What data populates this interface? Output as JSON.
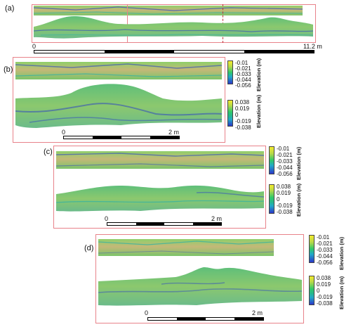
{
  "panels": {
    "a": {
      "label": "(a)",
      "scale_start": "0",
      "scale_end": "11.2 m"
    },
    "b": {
      "label": "(b)",
      "scale_start": "0",
      "scale_end": "2 m"
    },
    "c": {
      "label": "(c)",
      "scale_start": "0",
      "scale_end": "2 m"
    },
    "d": {
      "label": "(d)",
      "scale_start": "0",
      "scale_end": "2 m"
    }
  },
  "colorbar_elevation": {
    "title": "Elevation (m)",
    "ticks": [
      "-0.01",
      "-0.021",
      "-0.033",
      "-0.044",
      "-0.056"
    ]
  },
  "colorbar_difference": {
    "title": "Elevation (m)",
    "ticks": [
      "0.038",
      "0.019",
      "0",
      "-0.019",
      "-0.038"
    ]
  },
  "colors": {
    "frame": "#e8828a",
    "tan": "#c8ba78",
    "green": "#7cc46a",
    "teal": "#3ab3a0",
    "blue": "#2f49c0"
  },
  "icons": [
    "scale-bar",
    "colorbar"
  ]
}
